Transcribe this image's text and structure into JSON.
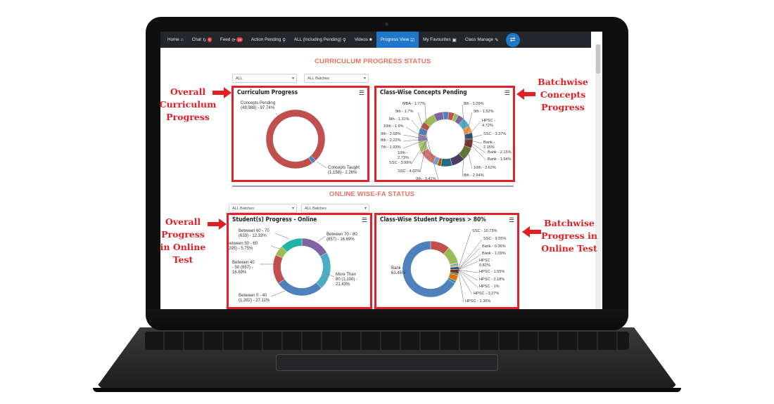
{
  "nav": {
    "items": [
      {
        "label": "Home",
        "icon": "home-icon",
        "glyph": "⌂"
      },
      {
        "label": "Chat",
        "icon": "chat-icon",
        "glyph": "↻",
        "badge": "0"
      },
      {
        "label": "Feed",
        "icon": "feed-icon",
        "glyph": "⟳",
        "badge": "18"
      },
      {
        "label": "Action Pending",
        "icon": "search-icon",
        "glyph": "⚲"
      },
      {
        "label": "ALL (Including Pending)",
        "icon": "search-icon",
        "glyph": "⚲"
      },
      {
        "label": "Videos",
        "icon": "video-icon",
        "glyph": "■"
      },
      {
        "label": "Progress View",
        "icon": "checkbox-icon",
        "glyph": "☑",
        "active": true
      },
      {
        "label": "My Favourites",
        "icon": "note-icon",
        "glyph": "▣"
      },
      {
        "label": "Class Manage",
        "icon": "pencil-icon",
        "glyph": "✎"
      }
    ],
    "switch_glyph": "⇄"
  },
  "curriculum": {
    "section_title": "CURRICULUM PROGRESS STATUS",
    "filter_class": "ALL",
    "filter_batch": "ALL Batches"
  },
  "online": {
    "section_title": "ONLINE WISE-FA STATUS",
    "filter_1": "ALL Batches",
    "filter_2": "ALL Batches"
  },
  "charts": {
    "curriculum_progress": {
      "title": "Curriculum Progress",
      "labels": [
        "Concepts Pending\n(49,988) - 97.74%",
        "Concepts Taught\n(1,158) - 2.26%"
      ]
    },
    "classwise_concepts": {
      "title": "Class-Wise Concepts Pending",
      "labels_left": [
        "MBA - 1.77%",
        "9th - 1.7%",
        "8th - 1.31%",
        "10th - 1.9%",
        "9th - 2.68%",
        "8th - 2.22%",
        "7th - 1.93%",
        "10th -\n2.73%",
        "SSC - 3.99%",
        "SSC - 4.02%",
        "9th - 3.41%"
      ],
      "labels_right": [
        "8th - 1.09%",
        "9th - 1.52%",
        "HPSC -\n4.72%",
        "SSC - 3.37%",
        "Bank -\n2.15%",
        "Bank - 2.15%",
        "Bank - 1.94%",
        "10th - 3.62%",
        "8th - 2.94%"
      ]
    },
    "students_online": {
      "title": "Student(s) Progress - Online",
      "labels": [
        "Between 60 - 70\n(633) - 12.33%",
        "ietween 50 - 60\n295) - 5.75%",
        "Between 40\n- 50 (857) -\n16.69%",
        "Between 0 - 40\n(1,392) - 27.11%",
        "More Than\n80 (1,100) -\n21.43%",
        "Between 70 - 80\n(857) - 16.69%"
      ]
    },
    "classwise_students": {
      "title": "Class-Wise Student Progress > 80%",
      "labels_right": [
        "SSC - 10.73%",
        "SSC - 9.55%",
        "Bank - 0.36%",
        "Bank - 1.09%",
        "HPSC -\n0.82%",
        "HPSC - 1.55%",
        "HPSC - 2.18%",
        "HPSC - 1%",
        "HPSC - 3.27%",
        "HPSC - 1.36%"
      ],
      "label_left": "Bank -\n63.45%"
    }
  },
  "chart_data": [
    {
      "type": "pie",
      "title": "Curriculum Progress",
      "slices": [
        {
          "name": "Concepts Pending",
          "count": 49988,
          "value": 97.74,
          "color": "#c0504d"
        },
        {
          "name": "Concepts Taught",
          "count": 1158,
          "value": 2.26,
          "color": "#4f81bd"
        }
      ]
    },
    {
      "type": "pie",
      "title": "Class-Wise Concepts Pending",
      "slices": [
        {
          "name": "MBA",
          "value": 1.77
        },
        {
          "name": "9th",
          "value": 1.7
        },
        {
          "name": "8th",
          "value": 1.31
        },
        {
          "name": "10th",
          "value": 1.9
        },
        {
          "name": "9th",
          "value": 2.68
        },
        {
          "name": "8th",
          "value": 2.22
        },
        {
          "name": "7th",
          "value": 1.93
        },
        {
          "name": "10th",
          "value": 2.73
        },
        {
          "name": "SSC",
          "value": 3.99
        },
        {
          "name": "SSC",
          "value": 4.02
        },
        {
          "name": "9th",
          "value": 3.41
        },
        {
          "name": "8th",
          "value": 1.09
        },
        {
          "name": "9th",
          "value": 1.52
        },
        {
          "name": "HPSC",
          "value": 4.72
        },
        {
          "name": "SSC",
          "value": 3.37
        },
        {
          "name": "Bank",
          "value": 2.15
        },
        {
          "name": "Bank",
          "value": 2.15
        },
        {
          "name": "Bank",
          "value": 1.94
        },
        {
          "name": "10th",
          "value": 3.62
        },
        {
          "name": "8th",
          "value": 2.94
        }
      ]
    },
    {
      "type": "pie",
      "title": "Student(s) Progress - Online",
      "slices": [
        {
          "name": "Between 70 - 80",
          "count": 857,
          "value": 16.69,
          "color": "#8064a2"
        },
        {
          "name": "More Than 80",
          "count": 1100,
          "value": 21.43,
          "color": "#4bacc6"
        },
        {
          "name": "Between 0 - 40",
          "count": 1392,
          "value": 27.11,
          "color": "#4f81bd"
        },
        {
          "name": "Between 40 - 50",
          "count": 857,
          "value": 16.69,
          "color": "#c0504d"
        },
        {
          "name": "Between 50 - 60",
          "count": 295,
          "value": 5.75,
          "color": "#9bbb59"
        },
        {
          "name": "Between 60 - 70",
          "count": 633,
          "value": 12.33,
          "color": "#1fb5a3"
        }
      ]
    },
    {
      "type": "pie",
      "title": "Class-Wise Student Progress > 80%",
      "slices": [
        {
          "name": "SSC",
          "value": 10.73,
          "color": "#c0504d"
        },
        {
          "name": "SSC",
          "value": 9.55,
          "color": "#9bbb59"
        },
        {
          "name": "Bank",
          "value": 0.36,
          "color": "#8064a2"
        },
        {
          "name": "Bank",
          "value": 1.09,
          "color": "#4bacc6"
        },
        {
          "name": "HPSC",
          "value": 0.82,
          "color": "#f79646"
        },
        {
          "name": "HPSC",
          "value": 1.55,
          "color": "#2c4d75"
        },
        {
          "name": "HPSC",
          "value": 2.18,
          "color": "#772c2a"
        },
        {
          "name": "HPSC",
          "value": 1.0,
          "color": "#5f7530"
        },
        {
          "name": "HPSC",
          "value": 3.27,
          "color": "#e46c0a"
        },
        {
          "name": "HPSC",
          "value": 1.36,
          "color": "#31859c"
        },
        {
          "name": "Bank",
          "value": 63.45,
          "color": "#4f81bd"
        }
      ]
    }
  ],
  "callouts": {
    "overall_curriculum": "Overall\nCurriculum\nProgress",
    "batchwise_concepts": "Batchwise\nConcepts\nProgress",
    "overall_online": "Overall\nProgress\nin Online\nTest",
    "batchwise_online": "Batchwise\nProgress in\nOnline Test"
  },
  "colors": {
    "annotation_red": "#e31e24",
    "section_title": "#ec7060",
    "nav_bg": "#23272b",
    "nav_active": "#1f77c9"
  }
}
